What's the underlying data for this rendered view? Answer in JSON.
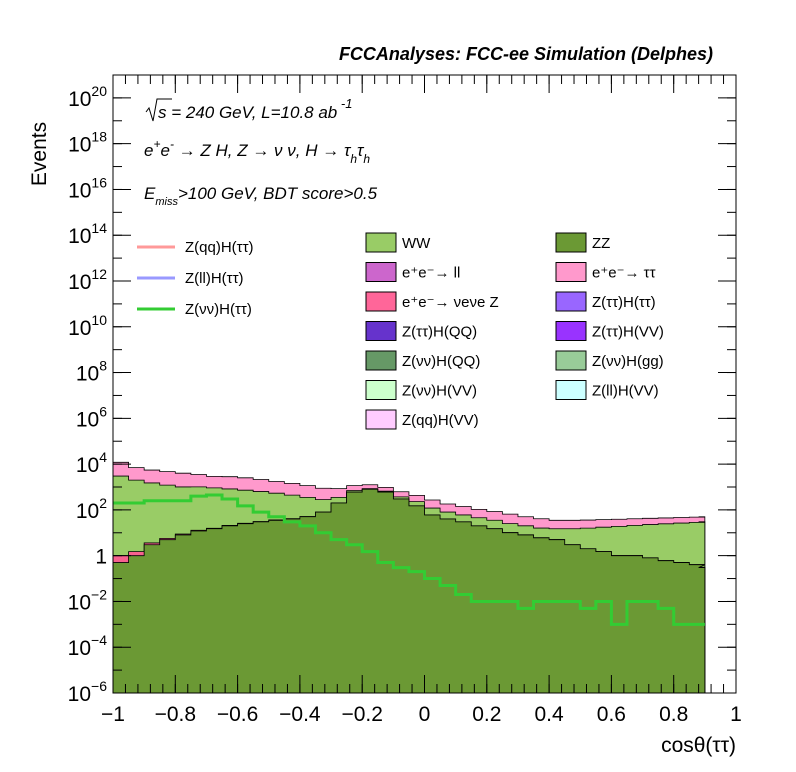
{
  "chart_data": {
    "type": "area",
    "title": "FCCAnalyses: FCC-ee Simulation (Delphes)",
    "xlabel": "cosθ(ττ)",
    "ylabel": "Events",
    "xlim": [
      -1,
      1
    ],
    "ylim": [
      1e-06,
      1e+21
    ],
    "log_y": true,
    "grid": false,
    "x_ticks": [
      "−1",
      "−0.8",
      "−0.6",
      "−0.4",
      "−0.2",
      "0",
      "0.2",
      "0.4",
      "0.6",
      "0.8",
      "1"
    ],
    "y_ticks": [
      {
        "base": "10",
        "exp": "20"
      },
      {
        "base": "10",
        "exp": "18"
      },
      {
        "base": "10",
        "exp": "16"
      },
      {
        "base": "10",
        "exp": "14"
      },
      {
        "base": "10",
        "exp": "12"
      },
      {
        "base": "10",
        "exp": "10"
      },
      {
        "base": "10",
        "exp": "8"
      },
      {
        "base": "10",
        "exp": "6"
      },
      {
        "base": "10",
        "exp": "4"
      },
      {
        "base": "10",
        "exp": "2"
      },
      {
        "base": "1",
        "exp": ""
      },
      {
        "base": "10",
        "exp": "−2"
      },
      {
        "base": "10",
        "exp": "−4"
      },
      {
        "base": "10",
        "exp": "−6"
      }
    ],
    "annotations": [
      "√s = 240 GeV, L=10.8 ab⁻¹",
      "e⁺e⁻ → Z H, Z → νν, H → τhτh",
      "Emiss>100 GeV, BDT score>0.5"
    ],
    "x_points": [
      -1.0,
      -0.95,
      -0.9,
      -0.85,
      -0.8,
      -0.75,
      -0.7,
      -0.65,
      -0.6,
      -0.55,
      -0.5,
      -0.45,
      -0.4,
      -0.35,
      -0.3,
      -0.25,
      -0.2,
      -0.15,
      -0.1,
      -0.05,
      0.0,
      0.05,
      0.1,
      0.15,
      0.2,
      0.25,
      0.3,
      0.35,
      0.4,
      0.45,
      0.5,
      0.55,
      0.6,
      0.65,
      0.7,
      0.75,
      0.8,
      0.85,
      0.88
    ],
    "stacks": [
      {
        "name": "ZZ",
        "color": "#6b9934",
        "values": [
          0.5,
          1,
          3,
          5,
          8,
          12,
          15,
          20,
          25,
          30,
          35,
          40,
          50,
          80,
          200,
          600,
          800,
          600,
          300,
          150,
          60,
          40,
          30,
          20,
          15,
          10,
          8,
          6,
          5,
          3,
          2,
          1.5,
          1,
          1,
          0.8,
          0.6,
          0.5,
          0.4,
          0.3
        ]
      },
      {
        "name": "e⁺e⁻→ νeνe Z",
        "color": "#f7628f",
        "values": [
          0.5,
          0.5,
          0.6,
          0.7,
          0.8,
          0.8,
          0.8,
          1,
          1,
          1,
          1.5,
          1.2,
          1,
          1,
          1,
          1,
          1,
          1,
          0.8,
          0.5,
          0.3,
          0.3,
          0.2,
          0.2,
          0.2,
          0.2,
          0.2,
          0.1,
          0.05,
          0.02,
          0.01,
          0.01,
          0.01,
          0.01,
          0.01,
          0.01,
          0.01,
          0.01,
          0.01
        ]
      },
      {
        "name": "WW",
        "color": "#99cc66",
        "values": [
          3000,
          2000,
          1500,
          1200,
          1000,
          1000,
          900,
          800,
          700,
          600,
          500,
          400,
          300,
          200,
          150,
          100,
          50,
          60,
          70,
          80,
          60,
          40,
          30,
          25,
          20,
          15,
          12,
          10,
          10,
          12,
          14,
          16,
          18,
          20,
          22,
          24,
          26,
          28,
          30
        ]
      },
      {
        "name": "e⁺e⁻ → ττ",
        "color": "#ff99cc",
        "values": [
          9000,
          5000,
          4000,
          3500,
          3000,
          2500,
          2000,
          2000,
          1800,
          1500,
          1200,
          1000,
          800,
          600,
          500,
          450,
          400,
          300,
          250,
          200,
          150,
          100,
          80,
          60,
          50,
          40,
          30,
          25,
          20,
          20,
          20,
          20,
          20,
          20,
          20,
          20,
          20,
          20,
          20
        ]
      }
    ],
    "signal_line": {
      "name": "Z(νν)H(ττ)",
      "color": "#33cc33",
      "values": [
        200,
        200,
        250,
        250,
        250,
        400,
        450,
        300,
        150,
        80,
        50,
        30,
        20,
        10,
        5,
        3,
        1.5,
        0.5,
        0.3,
        0.2,
        0.1,
        0.05,
        0.02,
        0.01,
        0.01,
        0.01,
        0.005,
        0.01,
        0.01,
        0.01,
        0.005,
        0.01,
        0.001,
        0.01,
        0.01,
        0.005,
        0.001,
        0.001,
        0.001
      ]
    },
    "legend_left": [
      {
        "name": "Z(qq)H(ττ)",
        "color": "#ff9999",
        "style": "line"
      },
      {
        "name": "Z(ll)H(ττ)",
        "color": "#9999ff",
        "style": "line"
      },
      {
        "name": "Z(νν)H(ττ)",
        "color": "#33cc33",
        "style": "line"
      }
    ],
    "legend_right": [
      {
        "name": "WW",
        "color": "#99cc66"
      },
      {
        "name": "ZZ",
        "color": "#6b9934"
      },
      {
        "name": "e⁺e⁻→ ll",
        "color": "#cc66cc"
      },
      {
        "name": "e⁺e⁻→ ττ",
        "color": "#ff99cc"
      },
      {
        "name": "e⁺e⁻→ νeνe Z",
        "color": "#ff6699"
      },
      {
        "name": "Z(ττ)H(ττ)",
        "color": "#9966ff"
      },
      {
        "name": "Z(ττ)H(QQ)",
        "color": "#6633cc"
      },
      {
        "name": "Z(ττ)H(VV)",
        "color": "#9933ff"
      },
      {
        "name": "Z(νν)H(QQ)",
        "color": "#669966"
      },
      {
        "name": "Z(νν)H(gg)",
        "color": "#99cc99"
      },
      {
        "name": "Z(νν)H(VV)",
        "color": "#ccffcc"
      },
      {
        "name": "Z(ll)H(VV)",
        "color": "#ccffff"
      },
      {
        "name": "Z(qq)H(VV)",
        "color": "#ffccff"
      }
    ]
  }
}
